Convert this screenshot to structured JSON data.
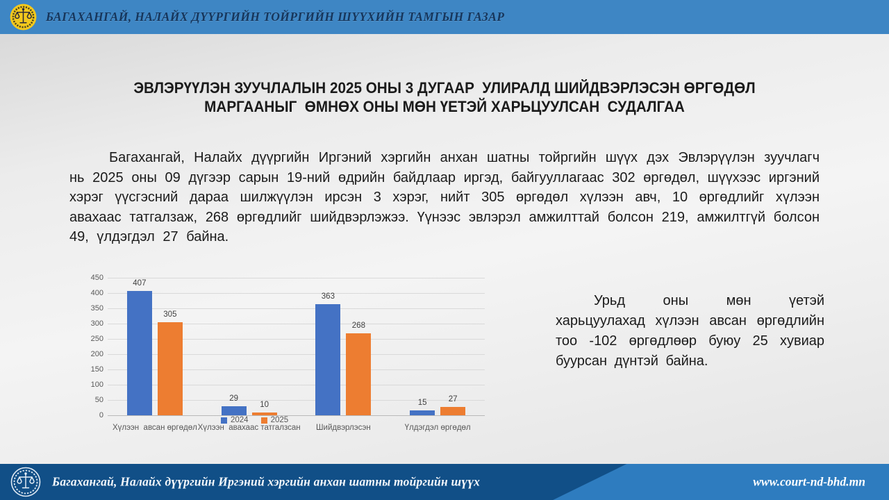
{
  "header": {
    "org_title": "БАГАХАНГАЙ, НАЛАЙХ ДҮҮРГИЙН ТОЙРГИЙН ШҮҮХИЙН ТАМГЫН ГАЗАР"
  },
  "slide": {
    "title_line1": "ЭВЛЭРҮҮЛЭН ЗУУЧЛАЛЫН 2025 ОНЫ 3 ДУГААР  УЛИРАЛД ШИЙДВЭРЛЭСЭН ӨРГӨДӨЛ",
    "title_line2": "МАРГААНЫГ  ӨМНӨХ ОНЫ МӨН ҮЕТЭЙ ХАРЬЦУУЛСАН  СУДАЛГАА",
    "body_paragraph": "Багахангай, Налайх дүүргийн Иргэний хэргийн анхан шатны тойргийн шүүх дэх Эвлэрүүлэн зуучлагч нь 2025 оны 09 дүгээр сарын 19-ний өдрийн байдлаар иргэд, байгууллагаас 302 өргөдөл, шүүхээс иргэний хэрэг үүсгэсний дараа шилжүүлэн ирсэн 3 хэрэг, нийт 305 өргөдөл хүлээн авч, 10 өргөдлийг хүлээн авахаас татгалзаж, 268 өргөдлийг шийдвэрлэжээ. Үүнээс эвлэрэл амжилттай болсон 219, амжилтгүй болсон 49, үлдэгдэл  27 байна.",
    "side_note": "Урьд оны мөн үетэй харьцуулахад хүлээн авсан өргөдлийн тоо -102 өргөдлөөр буюу 25 хувиар буурсан дүнтэй байна."
  },
  "chart_data": {
    "type": "bar",
    "title": "",
    "categories": [
      "Хүлээн  авсан өргөдөл",
      "Хүлээн  авахаас татгалзсан",
      "Шийдвэрлэсэн",
      "Үлдэгдэл өргөдөл"
    ],
    "series": [
      {
        "name": "2024",
        "color": "#4472C4",
        "values": [
          407,
          29,
          363,
          15
        ]
      },
      {
        "name": "2025",
        "color": "#ED7D31",
        "values": [
          305,
          10,
          268,
          27
        ]
      }
    ],
    "ylim": [
      0,
      450
    ],
    "ytick_step": 50,
    "grid": true,
    "legend_position": "bottom-center",
    "value_labels": true
  },
  "footer": {
    "court_name": "Багахангай, Налайх дүүргийн Иргэний хэргийн анхан шатны тойргийн шүүх",
    "website": "www.court-nd-bhd.mn"
  },
  "icons": {
    "header_logo": "scales-of-justice-emblem",
    "footer_logo": "scales-of-justice-outline-emblem"
  },
  "colors": {
    "header_bg": "#3E86C4",
    "header_text": "#16365C",
    "footer_dark_blue": "#114F87",
    "footer_light_blue": "#2E7CBF",
    "bar_2024": "#4472C4",
    "bar_2025": "#ED7D31",
    "logo_yellow": "#F2C81D",
    "axis_text": "#595959"
  }
}
